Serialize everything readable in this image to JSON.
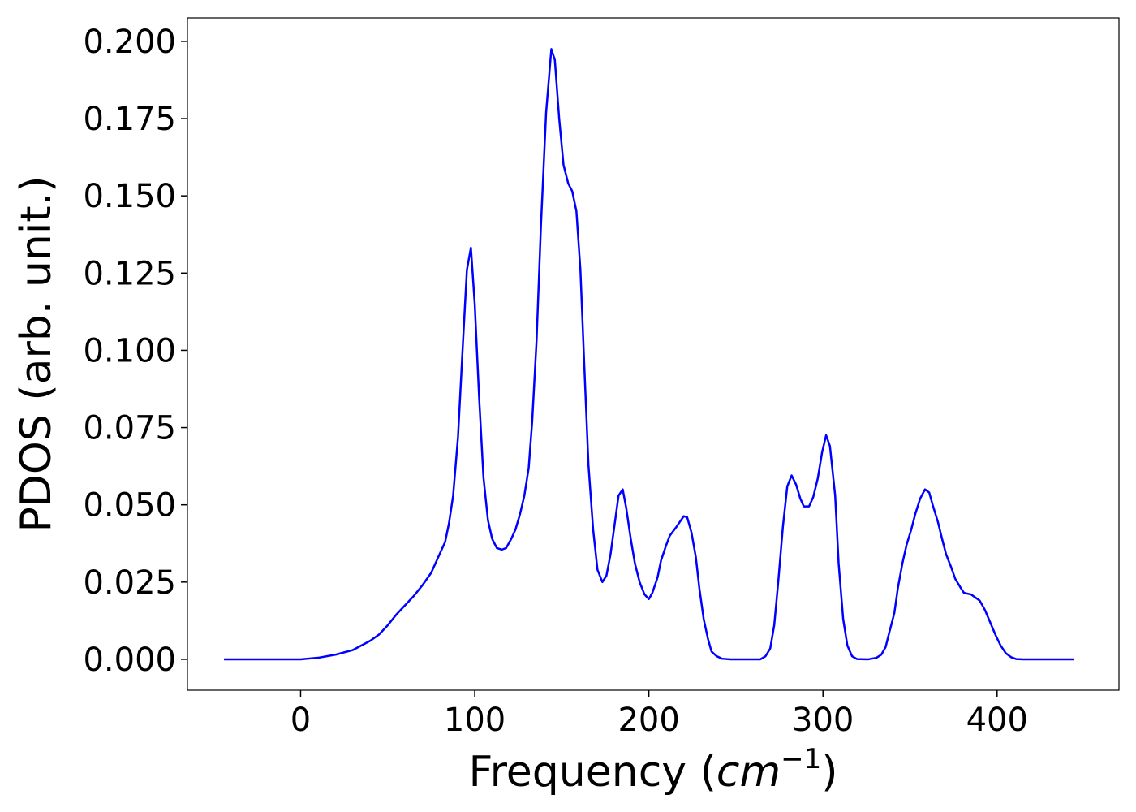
{
  "chart_data": {
    "type": "line",
    "xlabel": [
      "Frequency (",
      "cm",
      "−1",
      ")"
    ],
    "ylabel": "PDOS (arb. unit.)",
    "xlim": [
      -65,
      470
    ],
    "ylim": [
      -0.01,
      0.2076
    ],
    "xticks": [
      0,
      100,
      200,
      300,
      400
    ],
    "yticks": [
      {
        "value": 0,
        "label": "0.000"
      },
      {
        "value": 0.025,
        "label": "0.025"
      },
      {
        "value": 0.05,
        "label": "0.050"
      },
      {
        "value": 0.075,
        "label": "0.075"
      },
      {
        "value": 0.1,
        "label": "0.100"
      },
      {
        "value": 0.125,
        "label": "0.125"
      },
      {
        "value": 0.15,
        "label": "0.150"
      },
      {
        "value": 0.175,
        "label": "0.175"
      },
      {
        "value": 0.2,
        "label": "0.200"
      }
    ],
    "x": [
      -44,
      0,
      10,
      20,
      30,
      40,
      45,
      50,
      55,
      60,
      65,
      70,
      75,
      79,
      83,
      85.2,
      87.6,
      90.4,
      93,
      95.5,
      97.8,
      100,
      102.5,
      105,
      107.6,
      110,
      112.7,
      115.5,
      118,
      121,
      123.4,
      126,
      128.5,
      131,
      133,
      135.5,
      138,
      141,
      144,
      146,
      148.5,
      151,
      153.7,
      156,
      158.4,
      160.7,
      163,
      165.3,
      168,
      170.5,
      173.3,
      175.6,
      178,
      182.6,
      185,
      187,
      189.6,
      192,
      194.7,
      197.5,
      200,
      202,
      205,
      207,
      210,
      212,
      216,
      220,
      222,
      224.5,
      227,
      229,
      231.5,
      234,
      236,
      239,
      242,
      247,
      264,
      267,
      269.7,
      272,
      274.3,
      277,
      279.5,
      282,
      284.6,
      287,
      289,
      292,
      294.4,
      297,
      299.5,
      301.8,
      304,
      307,
      309,
      311.6,
      314,
      316.7,
      319.5,
      326,
      330.7,
      333.5,
      336,
      338,
      341,
      343,
      345.6,
      348,
      350.7,
      353,
      355.8,
      358.6,
      361,
      363,
      366,
      368.4,
      370.7,
      373.5,
      376,
      378.7,
      381,
      385,
      390,
      393,
      396,
      399,
      402,
      405,
      408,
      411,
      415,
      444
    ],
    "series": [
      {
        "color": "#0000ff",
        "values": [
          0,
          0,
          0.0005,
          0.0015,
          0.003,
          0.006,
          0.008,
          0.011,
          0.0145,
          0.0175,
          0.0205,
          0.024,
          0.028,
          0.033,
          0.038,
          0.044,
          0.053,
          0.072,
          0.1,
          0.126,
          0.1332,
          0.115,
          0.085,
          0.059,
          0.045,
          0.039,
          0.036,
          0.0355,
          0.036,
          0.039,
          0.042,
          0.047,
          0.053,
          0.062,
          0.077,
          0.103,
          0.14,
          0.177,
          0.1975,
          0.194,
          0.175,
          0.16,
          0.154,
          0.1515,
          0.145,
          0.126,
          0.094,
          0.063,
          0.042,
          0.029,
          0.025,
          0.027,
          0.034,
          0.053,
          0.055,
          0.049,
          0.039,
          0.031,
          0.025,
          0.021,
          0.0195,
          0.0215,
          0.0265,
          0.032,
          0.037,
          0.04,
          0.043,
          0.0463,
          0.046,
          0.041,
          0.033,
          0.023,
          0.013,
          0.0065,
          0.0025,
          0.001,
          0.0002,
          0,
          0,
          0.001,
          0.0035,
          0.011,
          0.025,
          0.043,
          0.056,
          0.0595,
          0.0565,
          0.052,
          0.0495,
          0.0495,
          0.0525,
          0.0585,
          0.067,
          0.0725,
          0.069,
          0.053,
          0.031,
          0.013,
          0.0045,
          0.001,
          0.0001,
          0,
          0.0005,
          0.0015,
          0.004,
          0.0085,
          0.015,
          0.023,
          0.031,
          0.037,
          0.042,
          0.047,
          0.052,
          0.055,
          0.054,
          0.05,
          0.0445,
          0.039,
          0.034,
          0.03,
          0.026,
          0.0235,
          0.0215,
          0.021,
          0.019,
          0.016,
          0.012,
          0.008,
          0.0045,
          0.002,
          0.0007,
          0.0001,
          0,
          0
        ]
      }
    ]
  }
}
